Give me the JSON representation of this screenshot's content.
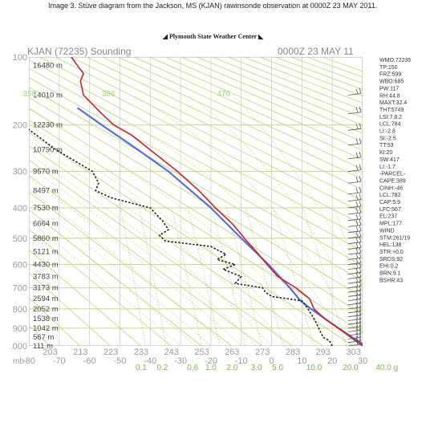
{
  "caption": "Image 3.  Stüve diagram from the Jackson, MS (KJAN) rawinsonde observation at 0000Z 23 MAY 2011.",
  "banner": "Plymouth State Weather Center",
  "diagram": {
    "header_left": "KJAN (72235) Sounding",
    "header_right": "0000Z 23 MAY 11",
    "pressure_labels": [
      {
        "p": 100,
        "text": "100"
      },
      {
        "p": 200,
        "text": "200"
      },
      {
        "p": 300,
        "text": "300"
      },
      {
        "p": 400,
        "text": "400"
      },
      {
        "p": 500,
        "text": "500"
      },
      {
        "p": 600,
        "text": "600"
      },
      {
        "p": 700,
        "text": "700"
      },
      {
        "p": 800,
        "text": "800"
      },
      {
        "p": 900,
        "text": "900"
      },
      {
        "p": 1000,
        "text": "1000"
      }
    ],
    "height_labels": [
      {
        "p": 110,
        "text": "16480 m"
      },
      {
        "p": 150,
        "text": "14010 m"
      },
      {
        "p": 200,
        "text": "12230 m"
      },
      {
        "p": 250,
        "text": "10790 m"
      },
      {
        "p": 300,
        "text": "9570 m"
      },
      {
        "p": 350,
        "text": "8497 m"
      },
      {
        "p": 400,
        "text": "7530 m"
      },
      {
        "p": 450,
        "text": "6664 m"
      },
      {
        "p": 500,
        "text": "5860 m"
      },
      {
        "p": 550,
        "text": "5121 m"
      },
      {
        "p": 600,
        "text": "4430 m"
      },
      {
        "p": 650,
        "text": "3783 m"
      },
      {
        "p": 700,
        "text": "3173 m"
      },
      {
        "p": 750,
        "text": "2594 m"
      },
      {
        "p": 800,
        "text": "2052 m"
      },
      {
        "p": 850,
        "text": "1538 m"
      },
      {
        "p": 900,
        "text": "1042 m"
      },
      {
        "p": 950,
        "text": "567 m"
      },
      {
        "p": 1000,
        "text": "111 m"
      }
    ],
    "temp_labels": [
      "203",
      "213",
      "223",
      "233",
      "243",
      "253",
      "263",
      "273",
      "283",
      "293",
      "303"
    ],
    "celsius_prefix": "mb",
    "celsius_labels": [
      "-80",
      "-70",
      "-60",
      "-50",
      "-40",
      "-30",
      "-20",
      "-10",
      "0",
      "10",
      "20",
      "30"
    ],
    "mixing_ratio_labels": [
      "0.1",
      "0.2",
      "0.6",
      "1.0",
      "2.0",
      "3.0",
      "5.0",
      "10.0",
      "20.0",
      "40.0 g"
    ],
    "theta_e_labels": [
      "350",
      "386",
      "476"
    ],
    "temperature_profile": [
      {
        "p": 1000,
        "t": 30
      },
      {
        "p": 950,
        "t": 26
      },
      {
        "p": 900,
        "t": 22
      },
      {
        "p": 850,
        "t": 17.5
      },
      {
        "p": 800,
        "t": 14
      },
      {
        "p": 750,
        "t": 12.5
      },
      {
        "p": 700,
        "t": 8
      },
      {
        "p": 650,
        "t": 2
      },
      {
        "p": 600,
        "t": -1.5
      },
      {
        "p": 550,
        "t": -5
      },
      {
        "p": 500,
        "t": -9
      },
      {
        "p": 480,
        "t": -10.5
      },
      {
        "p": 450,
        "t": -13
      },
      {
        "p": 400,
        "t": -18.5
      },
      {
        "p": 350,
        "t": -24
      },
      {
        "p": 300,
        "t": -31
      },
      {
        "p": 250,
        "t": -40
      },
      {
        "p": 220,
        "t": -46
      },
      {
        "p": 200,
        "t": -52
      },
      {
        "p": 180,
        "t": -56
      },
      {
        "p": 150,
        "t": -62
      },
      {
        "p": 130,
        "t": -63
      },
      {
        "p": 120,
        "t": -62
      },
      {
        "p": 110,
        "t": -64
      },
      {
        "p": 100,
        "t": -66
      }
    ],
    "dewpoint_profile": [
      {
        "p": 1000,
        "t": 20
      },
      {
        "p": 970,
        "t": 19
      },
      {
        "p": 950,
        "t": 17
      },
      {
        "p": 900,
        "t": 15.5
      },
      {
        "p": 850,
        "t": 14
      },
      {
        "p": 800,
        "t": 12
      },
      {
        "p": 760,
        "t": 10
      },
      {
        "p": 740,
        "t": 0
      },
      {
        "p": 720,
        "t": -2
      },
      {
        "p": 700,
        "t": -3
      },
      {
        "p": 680,
        "t": -12
      },
      {
        "p": 650,
        "t": -10
      },
      {
        "p": 620,
        "t": -16
      },
      {
        "p": 600,
        "t": -12
      },
      {
        "p": 580,
        "t": -18
      },
      {
        "p": 560,
        "t": -15
      },
      {
        "p": 530,
        "t": -20
      },
      {
        "p": 510,
        "t": -35
      },
      {
        "p": 490,
        "t": -37
      },
      {
        "p": 470,
        "t": -34
      },
      {
        "p": 440,
        "t": -36
      },
      {
        "p": 420,
        "t": -38
      },
      {
        "p": 400,
        "t": -40
      },
      {
        "p": 370,
        "t": -53
      },
      {
        "p": 350,
        "t": -58
      },
      {
        "p": 330,
        "t": -57
      },
      {
        "p": 300,
        "t": -59
      },
      {
        "p": 250,
        "t": -71
      },
      {
        "p": 200,
        "t": -82
      },
      {
        "p": 180,
        "t": -85
      },
      {
        "p": 150,
        "t": -84
      },
      {
        "p": 140,
        "t": -88
      },
      {
        "p": 120,
        "t": -87
      },
      {
        "p": 110,
        "t": -88
      },
      {
        "p": 100,
        "t": -86
      }
    ],
    "parcel_profile": [
      {
        "p": 1000,
        "t": 31
      },
      {
        "p": 900,
        "t": 22
      },
      {
        "p": 800,
        "t": 13
      },
      {
        "p": 760,
        "t": 9.5
      },
      {
        "p": 700,
        "t": 6
      },
      {
        "p": 600,
        "t": -1
      },
      {
        "p": 500,
        "t": -10
      },
      {
        "p": 400,
        "t": -20
      },
      {
        "p": 300,
        "t": -34
      },
      {
        "p": 250,
        "t": -44
      },
      {
        "p": 200,
        "t": -56
      },
      {
        "p": 170,
        "t": -64
      }
    ],
    "wind_pressures": [
      150,
      180,
      210,
      240,
      270,
      300,
      330,
      360,
      380,
      400,
      420,
      440,
      460,
      480,
      500,
      520,
      540,
      560,
      580,
      600,
      620,
      640,
      660,
      680,
      700,
      720,
      740,
      760,
      780,
      800,
      820,
      840,
      860,
      880,
      900,
      920,
      940,
      960,
      980,
      1000
    ],
    "indices": [
      "WMO:72235",
      "TP:150",
      "FRZ:599",
      "WBO:685",
      "PW:117",
      "RH:44.8",
      "MAXT:32.4",
      "THT:5749",
      "LSI:7.8:2",
      "LCL:784",
      "LI:-2.8",
      "SI:-2.5",
      "TT:53",
      "KI:20",
      "SW:417",
      "LI:-1.7",
      "-PARCEL-",
      "CAPE:389",
      "CINH:-46",
      "LCL:782",
      "CAP:5.9",
      "LFC:567",
      "EL:237",
      "MPL:177",
      "WIND",
      "STM:261/19",
      "HEL:138",
      "STR:+0.0",
      "SRDS:92",
      "EHI:0.2",
      "BRN:9.1",
      "BSHR:43"
    ],
    "colors": {
      "temperature": "#d21f2a",
      "dewpoint": "#222222",
      "parcel": "#5b6fd6",
      "dry_adiabat": "#b2d97a",
      "moist_adiabat": "#c5e59a",
      "mixing_ratio": "#98cf6a",
      "grid": "#cfcf98",
      "isotherm": "#c9c9c9"
    }
  }
}
